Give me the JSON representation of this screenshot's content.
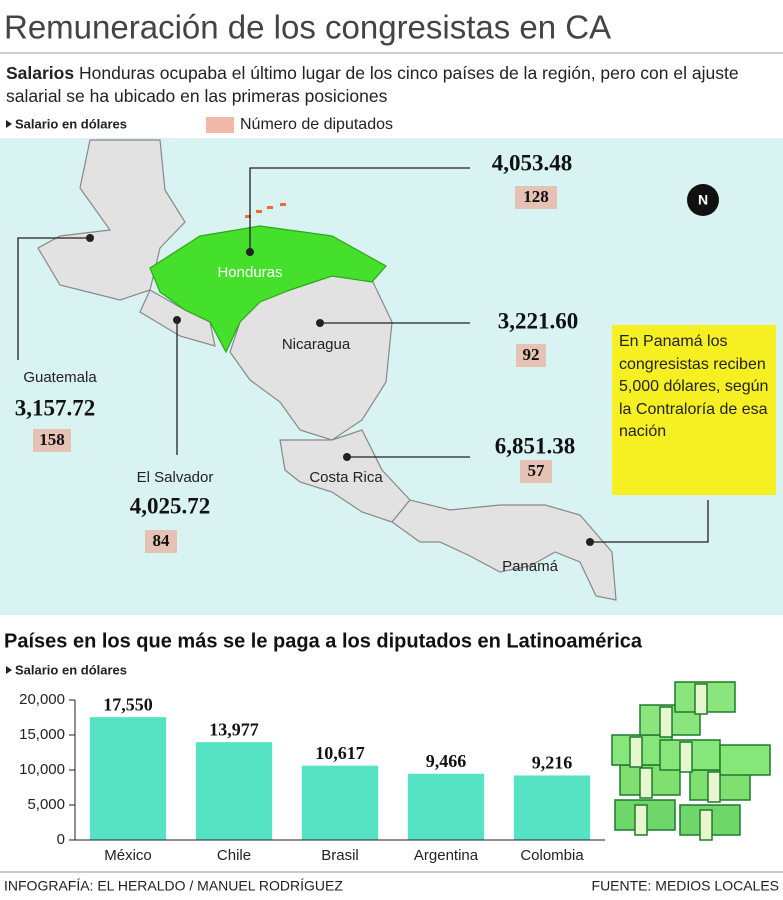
{
  "title": "Remuneración de los congresistas en CA",
  "subtitle_bold": "Salarios",
  "subtitle": "Honduras ocupaba el último lugar de los cinco países de la región, pero con el ajuste salarial se ha ubicado en las primeras posiciones",
  "legend": {
    "salary": "Salario en dólares",
    "deputies": "Número de diputados"
  },
  "map": {
    "compass": "N",
    "countries": [
      {
        "name": "Honduras",
        "salary": "4,053.48",
        "deputies": 128
      },
      {
        "name": "Nicaragua",
        "salary": "3,221.60",
        "deputies": 92
      },
      {
        "name": "Guatemala",
        "salary": "3,157.72",
        "deputies": 158
      },
      {
        "name": "El Salvador",
        "salary": "4,025.72",
        "deputies": 84
      },
      {
        "name": "Costa Rica",
        "salary": "6,851.38",
        "deputies": 57
      },
      {
        "name": "Panamá"
      }
    ],
    "note": "En Panamá los congresistas reciben 5,000 dólares, según la Contraloría de esa nación"
  },
  "chart_data": {
    "type": "bar",
    "title": "Países en los que más se le paga a los diputados en Latinoamérica",
    "y_label": "Salario en dólares",
    "categories": [
      "México",
      "Chile",
      "Brasil",
      "Argentina",
      "Colombia"
    ],
    "values": [
      17550,
      13977,
      10617,
      9466,
      9216
    ],
    "value_labels": [
      "17,550",
      "13,977",
      "10,617",
      "9,466",
      "9,216"
    ],
    "color": "#55e3c3",
    "ylim": [
      0,
      20000
    ],
    "yticks": [
      0,
      {
        "value": 5000,
        "label": "5,000"
      },
      {
        "value": 10000,
        "label": "10,000"
      },
      {
        "value": 15000,
        "label": "15,000"
      },
      {
        "value": 20000,
        "label": "20,000"
      }
    ],
    "grid": false
  },
  "footer": {
    "credit": "INFOGRAFÍA: EL HERALDO / MANUEL RODRÍGUEZ",
    "source": "FUENTE: MEDIOS LOCALES"
  }
}
